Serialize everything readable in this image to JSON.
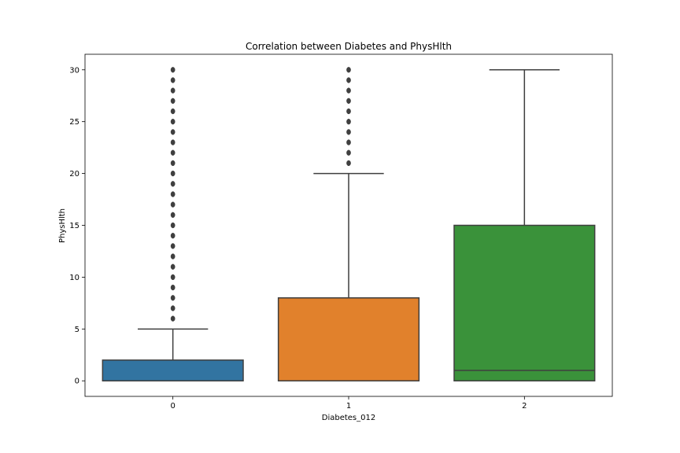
{
  "chart_data": {
    "type": "box",
    "title": "Correlation between Diabetes and PhysHlth",
    "xlabel": "Diabetes_012",
    "ylabel": "PhysHlth",
    "ylim": [
      -1.5,
      31.5
    ],
    "yticks": [
      0,
      5,
      10,
      15,
      20,
      25,
      30
    ],
    "grid": false,
    "categories": [
      "0",
      "1",
      "2"
    ],
    "colors": [
      "#3274a1",
      "#e1812c",
      "#3a923a"
    ],
    "edge_color": "#3f3f3f",
    "boxes": [
      {
        "category": "0",
        "whisker_low": 0,
        "q1": 0,
        "median": 0,
        "q3": 2,
        "whisker_high": 5,
        "outliers": [
          6,
          7,
          8,
          9,
          10,
          11,
          12,
          13,
          14,
          15,
          16,
          17,
          18,
          19,
          20,
          21,
          22,
          23,
          24,
          25,
          26,
          27,
          28,
          29,
          30
        ]
      },
      {
        "category": "1",
        "whisker_low": 0,
        "q1": 0,
        "median": 0,
        "q3": 8,
        "whisker_high": 20,
        "outliers": [
          21,
          22,
          23,
          24,
          25,
          26,
          27,
          28,
          29,
          30
        ]
      },
      {
        "category": "2",
        "whisker_low": 0,
        "q1": 0,
        "median": 1,
        "q3": 15,
        "whisker_high": 30,
        "outliers": []
      }
    ]
  }
}
